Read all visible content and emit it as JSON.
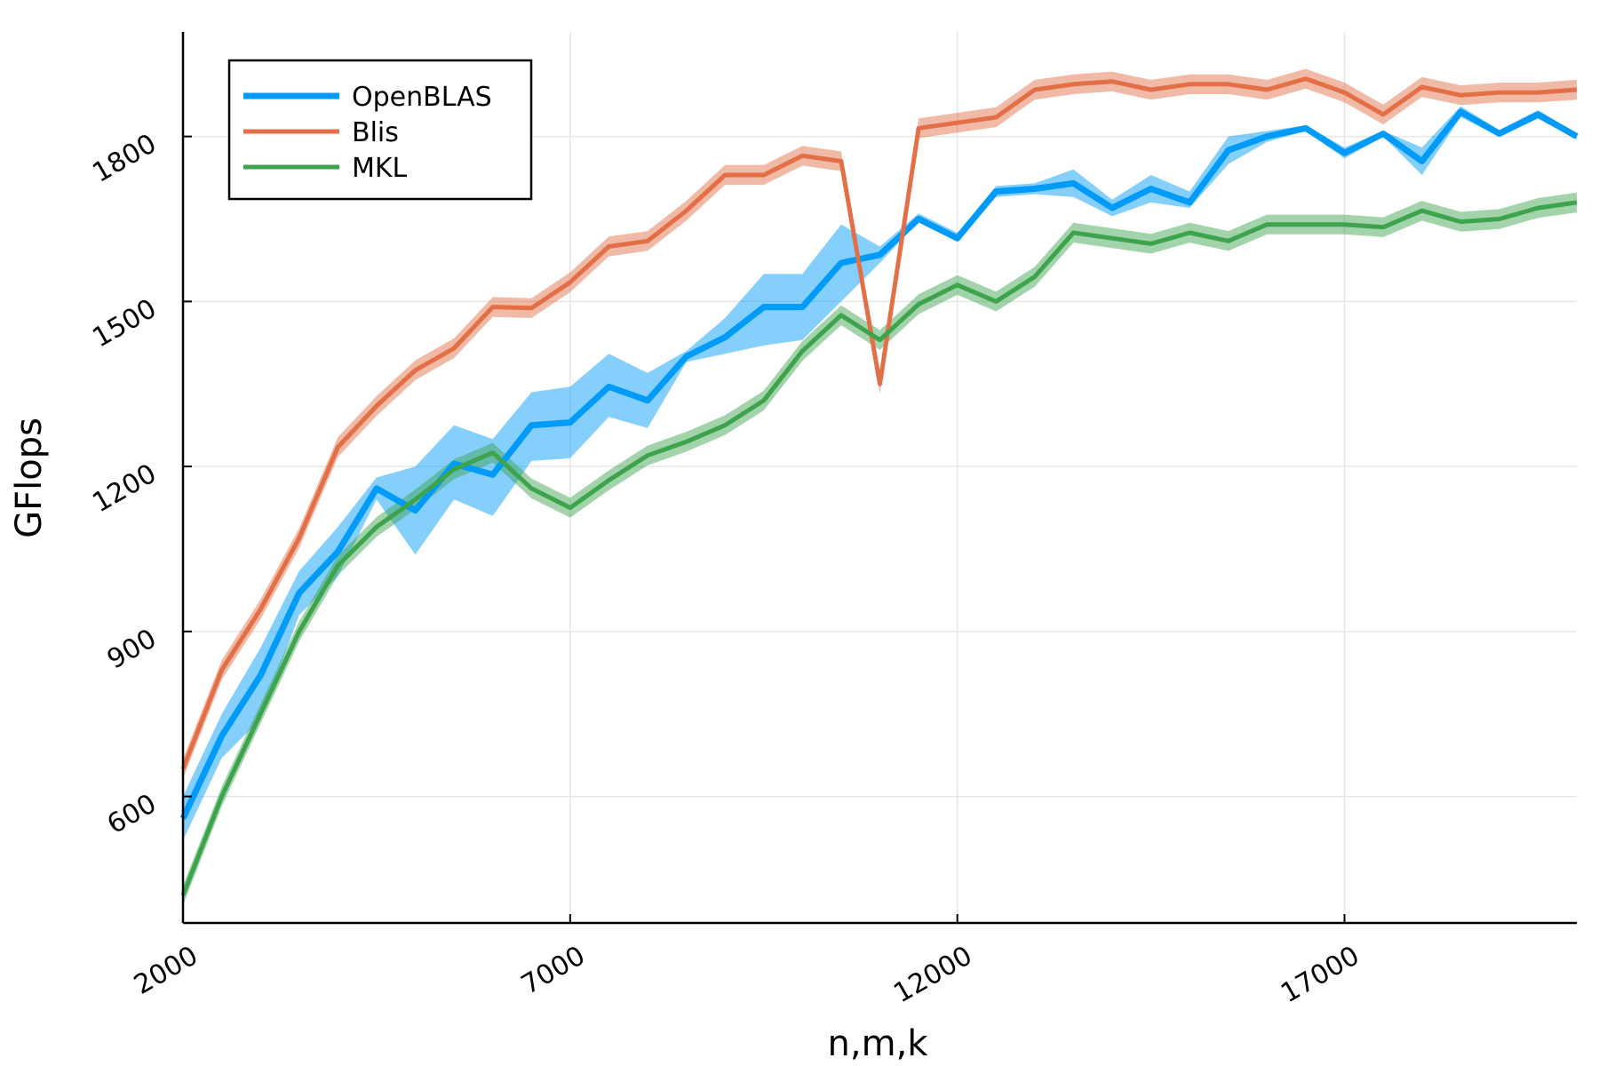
{
  "chart_data": {
    "type": "line",
    "title": "",
    "xlabel": "n,m,k",
    "ylabel": "GFlops",
    "xlim": [
      2000,
      20000
    ],
    "ylim": [
      370,
      1990
    ],
    "xticks": [
      2000,
      7000,
      12000,
      17000
    ],
    "yticks": [
      600,
      900,
      1200,
      1500,
      1800
    ],
    "grid": true,
    "legend_position": "top-left",
    "x": [
      2000,
      2500,
      3000,
      3500,
      4000,
      4500,
      5000,
      5500,
      6000,
      6500,
      7000,
      7500,
      8000,
      8500,
      9000,
      9500,
      10000,
      10500,
      11000,
      11500,
      12000,
      12500,
      13000,
      13500,
      14000,
      14500,
      15000,
      15500,
      16000,
      16500,
      17000,
      17500,
      18000,
      18500,
      19000,
      19500,
      20000
    ],
    "series": [
      {
        "name": "OpenBLAS",
        "color": "#009af9",
        "line_width": 7,
        "values": [
          560,
          710,
          820,
          970,
          1045,
          1160,
          1120,
          1205,
          1185,
          1275,
          1280,
          1345,
          1320,
          1400,
          1435,
          1490,
          1490,
          1570,
          1585,
          1650,
          1615,
          1700,
          1705,
          1715,
          1670,
          1705,
          1680,
          1775,
          1800,
          1815,
          1770,
          1805,
          1755,
          1845,
          1805,
          1840,
          1800
        ],
        "band": [
          [
            520,
            600
          ],
          [
            670,
            750
          ],
          [
            740,
            870
          ],
          [
            930,
            1010
          ],
          [
            1000,
            1090
          ],
          [
            1140,
            1180
          ],
          [
            1040,
            1200
          ],
          [
            1140,
            1275
          ],
          [
            1110,
            1250
          ],
          [
            1210,
            1335
          ],
          [
            1215,
            1345
          ],
          [
            1290,
            1405
          ],
          [
            1270,
            1370
          ],
          [
            1390,
            1410
          ],
          [
            1405,
            1470
          ],
          [
            1420,
            1550
          ],
          [
            1430,
            1550
          ],
          [
            1500,
            1640
          ],
          [
            1570,
            1600
          ],
          [
            1645,
            1660
          ],
          [
            1610,
            1625
          ],
          [
            1690,
            1710
          ],
          [
            1695,
            1715
          ],
          [
            1690,
            1740
          ],
          [
            1655,
            1685
          ],
          [
            1680,
            1730
          ],
          [
            1670,
            1700
          ],
          [
            1750,
            1800
          ],
          [
            1790,
            1810
          ],
          [
            1810,
            1820
          ],
          [
            1760,
            1780
          ],
          [
            1800,
            1810
          ],
          [
            1730,
            1780
          ],
          [
            1835,
            1855
          ],
          [
            1800,
            1812
          ],
          [
            1832,
            1848
          ],
          [
            1795,
            1805
          ]
        ]
      },
      {
        "name": "Blis",
        "color": "#e26f46",
        "line_width": 5,
        "values": [
          650,
          830,
          940,
          1070,
          1235,
          1310,
          1375,
          1415,
          1490,
          1488,
          1535,
          1600,
          1610,
          1665,
          1730,
          1730,
          1765,
          1755,
          1350,
          1815,
          1825,
          1835,
          1885,
          1895,
          1900,
          1885,
          1895,
          1895,
          1885,
          1905,
          1880,
          1840,
          1890,
          1875,
          1880,
          1880,
          1885
        ]
      },
      {
        "name": "MKL",
        "color": "#3da44d",
        "line_width": 5,
        "values": [
          420,
          600,
          750,
          900,
          1020,
          1090,
          1140,
          1195,
          1225,
          1160,
          1125,
          1175,
          1220,
          1245,
          1275,
          1320,
          1410,
          1475,
          1430,
          1495,
          1530,
          1500,
          1545,
          1625,
          1615,
          1605,
          1625,
          1610,
          1640,
          1640,
          1640,
          1635,
          1665,
          1645,
          1650,
          1670,
          1680
        ]
      }
    ]
  }
}
